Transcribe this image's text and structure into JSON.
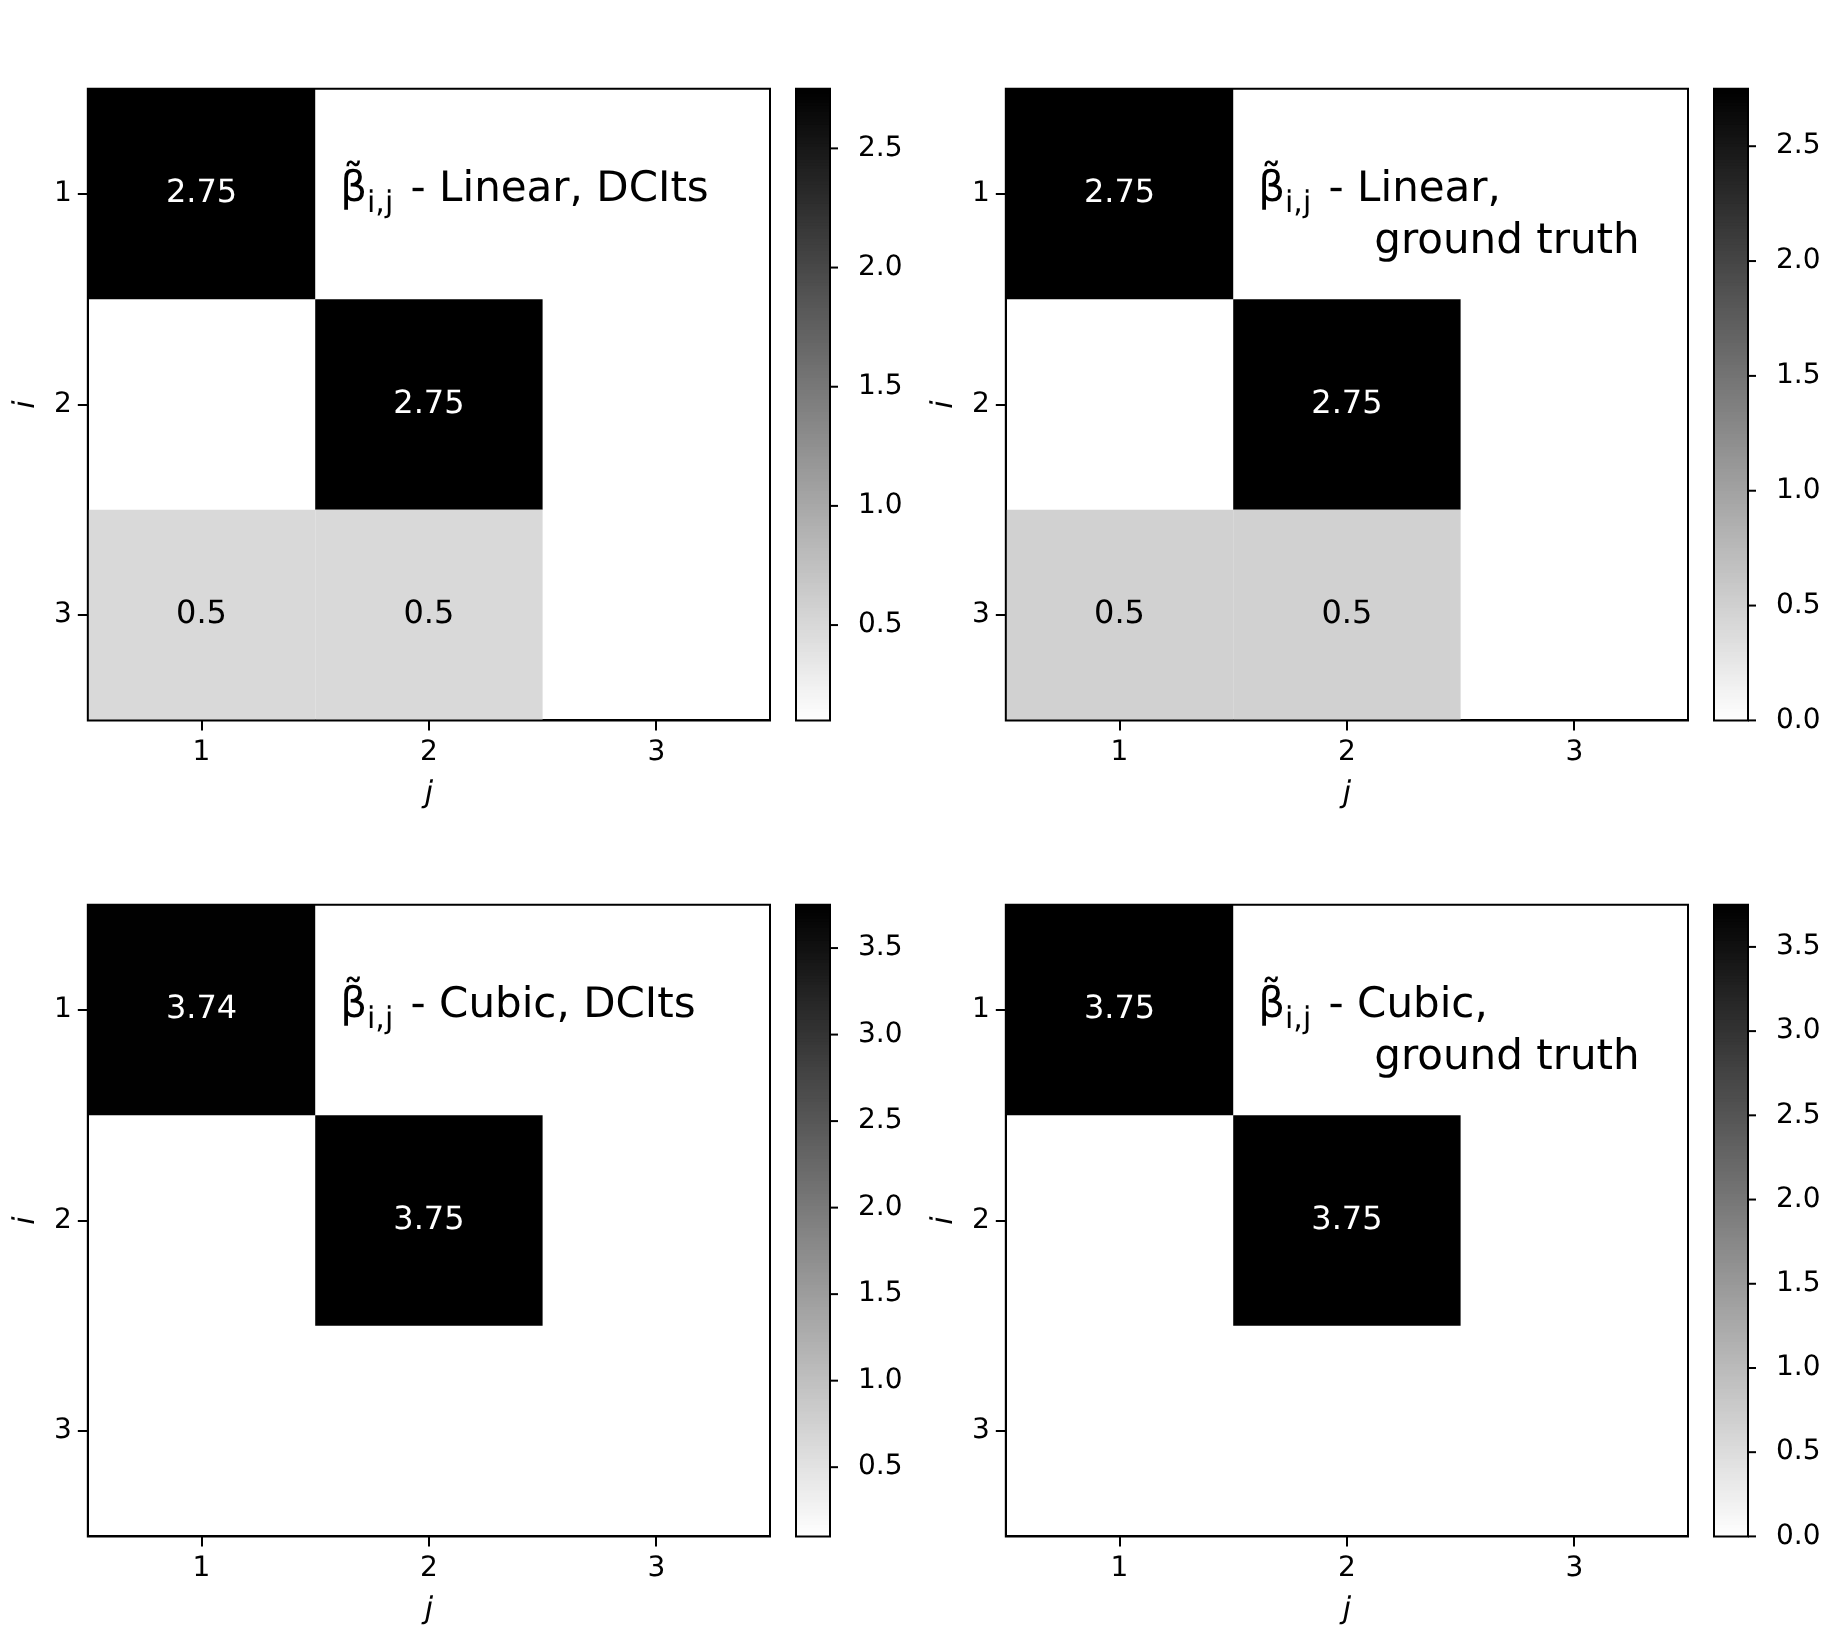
{
  "chart_data": [
    {
      "type": "heatmap",
      "categories": [
        "1",
        "2",
        "3"
      ],
      "y_categories": [
        "1",
        "2",
        "3"
      ],
      "xlabel": "j",
      "ylabel": "i",
      "annotations": [
        "β̃$_{i,j}$ - Linear, DCIts"
      ],
      "data_labels": true,
      "cells": [
        [
          2.75,
          null,
          null
        ],
        [
          null,
          2.75,
          null
        ],
        [
          0.5,
          0.5,
          null
        ]
      ],
      "clim": [
        0.1,
        2.75
      ],
      "cticks": [
        0.5,
        {
          "value": 1,
          "label": "1.0"
        },
        1.5,
        {
          "value": 2,
          "label": "2.0"
        },
        2.5
      ]
    },
    {
      "type": "heatmap",
      "categories": [
        "1",
        "2",
        "3"
      ],
      "y_categories": [
        "1",
        "2",
        "3"
      ],
      "xlabel": "j",
      "ylabel": "i",
      "annotations": [
        "β̃$_{i,j}$ - Linear,\nground truth"
      ],
      "data_labels": true,
      "cells": [
        [
          2.75,
          null,
          null
        ],
        [
          null,
          2.75,
          null
        ],
        [
          0.5,
          0.5,
          null
        ]
      ],
      "clim": [
        0,
        2.75
      ],
      "cticks": [
        {
          "value": 0,
          "label": "0.0"
        },
        0.5,
        {
          "value": 1,
          "label": "1.0"
        },
        1.5,
        {
          "value": 2,
          "label": "2.0"
        },
        2.5
      ]
    },
    {
      "type": "heatmap",
      "categories": [
        "1",
        "2",
        "3"
      ],
      "y_categories": [
        "1",
        "2",
        "3"
      ],
      "xlabel": "j",
      "ylabel": "i",
      "annotations": [
        "β̃$_{i,j}$ - Cubic, DCIts"
      ],
      "data_labels": true,
      "cells": [
        [
          3.74,
          null,
          null
        ],
        [
          null,
          3.75,
          null
        ],
        [
          null,
          null,
          null
        ]
      ],
      "clim": [
        0.1,
        3.75
      ],
      "cticks": [
        0.5,
        {
          "value": 1,
          "label": "1.0"
        },
        1.5,
        {
          "value": 2,
          "label": "2.0"
        },
        2.5,
        {
          "value": 3,
          "label": "3.0"
        },
        3.5
      ]
    },
    {
      "type": "heatmap",
      "categories": [
        "1",
        "2",
        "3"
      ],
      "y_categories": [
        "1",
        "2",
        "3"
      ],
      "xlabel": "j",
      "ylabel": "i",
      "annotations": [
        "β̃$_{i,j}$ - Cubic,\nground truth"
      ],
      "data_labels": true,
      "cells": [
        [
          3.75,
          null,
          null
        ],
        [
          null,
          3.75,
          null
        ],
        [
          null,
          null,
          null
        ]
      ],
      "clim": [
        0,
        3.75
      ],
      "cticks": [
        {
          "value": 0,
          "label": "0.0"
        },
        0.5,
        {
          "value": 1,
          "label": "1.0"
        },
        1.5,
        {
          "value": 2,
          "label": "2.0"
        },
        2.5,
        {
          "value": 3,
          "label": "3.0"
        },
        3.5
      ]
    }
  ]
}
